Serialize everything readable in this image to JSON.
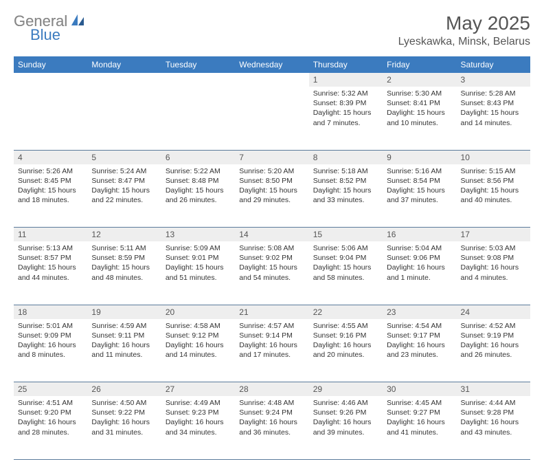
{
  "brand": {
    "general": "General",
    "blue": "Blue"
  },
  "title": "May 2025",
  "location": "Lyeskawka, Minsk, Belarus",
  "colors": {
    "header_bg": "#3b7bbf",
    "header_text": "#ffffff",
    "daynum_bg": "#eeeeee",
    "text": "#333333",
    "rule": "#5a7a9a"
  },
  "weekdays": [
    "Sunday",
    "Monday",
    "Tuesday",
    "Wednesday",
    "Thursday",
    "Friday",
    "Saturday"
  ],
  "weeks": [
    [
      null,
      null,
      null,
      null,
      {
        "n": "1",
        "sr": "5:32 AM",
        "ss": "8:39 PM",
        "dl": "15 hours and 7 minutes."
      },
      {
        "n": "2",
        "sr": "5:30 AM",
        "ss": "8:41 PM",
        "dl": "15 hours and 10 minutes."
      },
      {
        "n": "3",
        "sr": "5:28 AM",
        "ss": "8:43 PM",
        "dl": "15 hours and 14 minutes."
      }
    ],
    [
      {
        "n": "4",
        "sr": "5:26 AM",
        "ss": "8:45 PM",
        "dl": "15 hours and 18 minutes."
      },
      {
        "n": "5",
        "sr": "5:24 AM",
        "ss": "8:47 PM",
        "dl": "15 hours and 22 minutes."
      },
      {
        "n": "6",
        "sr": "5:22 AM",
        "ss": "8:48 PM",
        "dl": "15 hours and 26 minutes."
      },
      {
        "n": "7",
        "sr": "5:20 AM",
        "ss": "8:50 PM",
        "dl": "15 hours and 29 minutes."
      },
      {
        "n": "8",
        "sr": "5:18 AM",
        "ss": "8:52 PM",
        "dl": "15 hours and 33 minutes."
      },
      {
        "n": "9",
        "sr": "5:16 AM",
        "ss": "8:54 PM",
        "dl": "15 hours and 37 minutes."
      },
      {
        "n": "10",
        "sr": "5:15 AM",
        "ss": "8:56 PM",
        "dl": "15 hours and 40 minutes."
      }
    ],
    [
      {
        "n": "11",
        "sr": "5:13 AM",
        "ss": "8:57 PM",
        "dl": "15 hours and 44 minutes."
      },
      {
        "n": "12",
        "sr": "5:11 AM",
        "ss": "8:59 PM",
        "dl": "15 hours and 48 minutes."
      },
      {
        "n": "13",
        "sr": "5:09 AM",
        "ss": "9:01 PM",
        "dl": "15 hours and 51 minutes."
      },
      {
        "n": "14",
        "sr": "5:08 AM",
        "ss": "9:02 PM",
        "dl": "15 hours and 54 minutes."
      },
      {
        "n": "15",
        "sr": "5:06 AM",
        "ss": "9:04 PM",
        "dl": "15 hours and 58 minutes."
      },
      {
        "n": "16",
        "sr": "5:04 AM",
        "ss": "9:06 PM",
        "dl": "16 hours and 1 minute."
      },
      {
        "n": "17",
        "sr": "5:03 AM",
        "ss": "9:08 PM",
        "dl": "16 hours and 4 minutes."
      }
    ],
    [
      {
        "n": "18",
        "sr": "5:01 AM",
        "ss": "9:09 PM",
        "dl": "16 hours and 8 minutes."
      },
      {
        "n": "19",
        "sr": "4:59 AM",
        "ss": "9:11 PM",
        "dl": "16 hours and 11 minutes."
      },
      {
        "n": "20",
        "sr": "4:58 AM",
        "ss": "9:12 PM",
        "dl": "16 hours and 14 minutes."
      },
      {
        "n": "21",
        "sr": "4:57 AM",
        "ss": "9:14 PM",
        "dl": "16 hours and 17 minutes."
      },
      {
        "n": "22",
        "sr": "4:55 AM",
        "ss": "9:16 PM",
        "dl": "16 hours and 20 minutes."
      },
      {
        "n": "23",
        "sr": "4:54 AM",
        "ss": "9:17 PM",
        "dl": "16 hours and 23 minutes."
      },
      {
        "n": "24",
        "sr": "4:52 AM",
        "ss": "9:19 PM",
        "dl": "16 hours and 26 minutes."
      }
    ],
    [
      {
        "n": "25",
        "sr": "4:51 AM",
        "ss": "9:20 PM",
        "dl": "16 hours and 28 minutes."
      },
      {
        "n": "26",
        "sr": "4:50 AM",
        "ss": "9:22 PM",
        "dl": "16 hours and 31 minutes."
      },
      {
        "n": "27",
        "sr": "4:49 AM",
        "ss": "9:23 PM",
        "dl": "16 hours and 34 minutes."
      },
      {
        "n": "28",
        "sr": "4:48 AM",
        "ss": "9:24 PM",
        "dl": "16 hours and 36 minutes."
      },
      {
        "n": "29",
        "sr": "4:46 AM",
        "ss": "9:26 PM",
        "dl": "16 hours and 39 minutes."
      },
      {
        "n": "30",
        "sr": "4:45 AM",
        "ss": "9:27 PM",
        "dl": "16 hours and 41 minutes."
      },
      {
        "n": "31",
        "sr": "4:44 AM",
        "ss": "9:28 PM",
        "dl": "16 hours and 43 minutes."
      }
    ]
  ],
  "labels": {
    "sunrise": "Sunrise:",
    "sunset": "Sunset:",
    "daylight": "Daylight:"
  }
}
